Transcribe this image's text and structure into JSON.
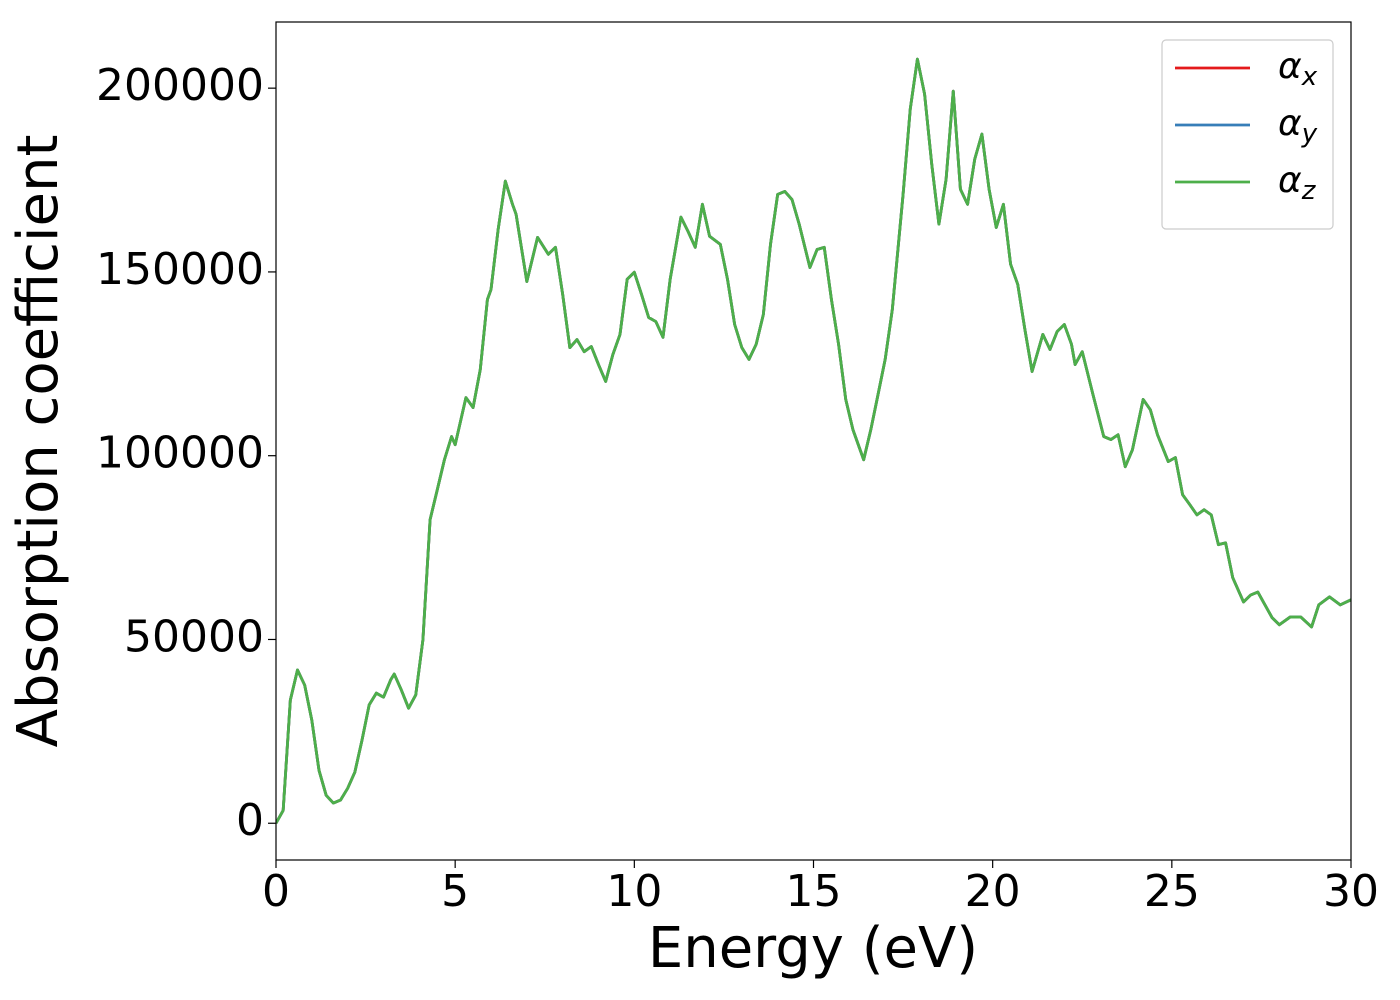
{
  "chart_data": {
    "type": "line",
    "xlabel": "Energy (eV)",
    "ylabel": "Absorption coefficient",
    "xlim": [
      0,
      30
    ],
    "xticks": [
      0,
      5,
      10,
      15,
      20,
      25,
      30
    ],
    "ylim": [
      -10000,
      218000
    ],
    "yticks": [
      0,
      50000,
      100000,
      150000,
      200000
    ],
    "legend": "upper right",
    "grid": false,
    "x": [
      0,
      0.2,
      0.4,
      0.6,
      0.8,
      1.0,
      1.2,
      1.4,
      1.6,
      1.8,
      2.0,
      2.2,
      2.4,
      2.6,
      2.8,
      3.0,
      3.2,
      3.3,
      3.5,
      3.7,
      3.9,
      4.1,
      4.3,
      4.5,
      4.7,
      4.9,
      5.0,
      5.3,
      5.5,
      5.7,
      5.9,
      6.0,
      6.2,
      6.4,
      6.6,
      6.7,
      7.0,
      7.3,
      7.6,
      7.8,
      8.0,
      8.2,
      8.4,
      8.6,
      8.8,
      9.0,
      9.2,
      9.4,
      9.6,
      9.8,
      10.0,
      10.2,
      10.4,
      10.6,
      10.8,
      11.0,
      11.3,
      11.5,
      11.7,
      11.9,
      12.1,
      12.4,
      12.6,
      12.8,
      13.0,
      13.2,
      13.4,
      13.6,
      13.8,
      14.0,
      14.2,
      14.4,
      14.6,
      14.9,
      15.1,
      15.3,
      15.5,
      15.7,
      15.9,
      16.1,
      16.4,
      16.6,
      16.8,
      17.0,
      17.2,
      17.5,
      17.7,
      17.9,
      18.1,
      18.3,
      18.5,
      18.7,
      18.9,
      19.1,
      19.3,
      19.5,
      19.7,
      19.9,
      20.1,
      20.3,
      20.5,
      20.7,
      20.9,
      21.1,
      21.4,
      21.6,
      21.8,
      22.0,
      22.2,
      22.3,
      22.5,
      22.8,
      23.1,
      23.3,
      23.5,
      23.7,
      23.9,
      24.2,
      24.4,
      24.6,
      24.9,
      25.1,
      25.3,
      25.5,
      25.7,
      25.9,
      26.1,
      26.3,
      26.5,
      26.7,
      27.0,
      27.2,
      27.4,
      27.6,
      27.8,
      28.0,
      28.3,
      28.6,
      28.9,
      29.1,
      29.4,
      29.7,
      30.0
    ],
    "series": [
      {
        "name": "α_x",
        "color": "#e41a1c",
        "values": [
          0,
          3500,
          33500,
          41700,
          37600,
          28000,
          14400,
          7600,
          5500,
          6300,
          9500,
          13900,
          22600,
          32200,
          35400,
          34300,
          39000,
          40600,
          36200,
          31300,
          34900,
          49900,
          82600,
          90700,
          98900,
          105200,
          103000,
          115800,
          113100,
          123400,
          142500,
          145200,
          161600,
          174700,
          168400,
          165700,
          147400,
          159400,
          154800,
          156700,
          143900,
          129400,
          131600,
          128300,
          129700,
          124800,
          120200,
          127500,
          133000,
          148000,
          149900,
          143900,
          137600,
          136500,
          132200,
          148000,
          164900,
          161000,
          156700,
          168400,
          159700,
          157500,
          148000,
          135700,
          129400,
          126200,
          130300,
          138400,
          157500,
          171100,
          171900,
          169700,
          163000,
          151200,
          156100,
          156700,
          142500,
          130300,
          115300,
          107100,
          98900,
          107100,
          116600,
          126200,
          139800,
          171100,
          194300,
          207900,
          198400,
          179300,
          163000,
          175200,
          199200,
          172500,
          168400,
          180700,
          187500,
          172500,
          162100,
          168400,
          152100,
          146600,
          134300,
          122900,
          133000,
          128900,
          133800,
          135700,
          130300,
          124800,
          128300,
          116600,
          105200,
          104400,
          105700,
          97000,
          101600,
          115300,
          112500,
          105700,
          98400,
          99500,
          89400,
          86700,
          83900,
          85300,
          83900,
          75800,
          76300,
          66800,
          60200,
          62100,
          62900,
          59400,
          55900,
          54000,
          56100,
          56100,
          53400,
          59400,
          61600,
          59400,
          60800
        ]
      },
      {
        "name": "α_y",
        "color": "#377eb8",
        "values": [
          0,
          3500,
          33500,
          41700,
          37600,
          28000,
          14400,
          7600,
          5500,
          6300,
          9500,
          13900,
          22600,
          32200,
          35400,
          34300,
          39000,
          40600,
          36200,
          31300,
          34900,
          49900,
          82600,
          90700,
          98900,
          105200,
          103000,
          115800,
          113100,
          123400,
          142500,
          145200,
          161600,
          174700,
          168400,
          165700,
          147400,
          159400,
          154800,
          156700,
          143900,
          129400,
          131600,
          128300,
          129700,
          124800,
          120200,
          127500,
          133000,
          148000,
          149900,
          143900,
          137600,
          136500,
          132200,
          148000,
          164900,
          161000,
          156700,
          168400,
          159700,
          157500,
          148000,
          135700,
          129400,
          126200,
          130300,
          138400,
          157500,
          171100,
          171900,
          169700,
          163000,
          151200,
          156100,
          156700,
          142500,
          130300,
          115300,
          107100,
          98900,
          107100,
          116600,
          126200,
          139800,
          171100,
          194300,
          207900,
          198400,
          179300,
          163000,
          175200,
          199200,
          172500,
          168400,
          180700,
          187500,
          172500,
          162100,
          168400,
          152100,
          146600,
          134300,
          122900,
          133000,
          128900,
          133800,
          135700,
          130300,
          124800,
          128300,
          116600,
          105200,
          104400,
          105700,
          97000,
          101600,
          115300,
          112500,
          105700,
          98400,
          99500,
          89400,
          86700,
          83900,
          85300,
          83900,
          75800,
          76300,
          66800,
          60200,
          62100,
          62900,
          59400,
          55900,
          54000,
          56100,
          56100,
          53400,
          59400,
          61600,
          59400,
          60800
        ]
      },
      {
        "name": "α_z",
        "color": "#4daf4a",
        "values": [
          0,
          3500,
          33500,
          41700,
          37600,
          28000,
          14400,
          7600,
          5500,
          6300,
          9500,
          13900,
          22600,
          32200,
          35400,
          34300,
          39000,
          40600,
          36200,
          31300,
          34900,
          49900,
          82600,
          90700,
          98900,
          105200,
          103000,
          115800,
          113100,
          123400,
          142500,
          145200,
          161600,
          174700,
          168400,
          165700,
          147400,
          159400,
          154800,
          156700,
          143900,
          129400,
          131600,
          128300,
          129700,
          124800,
          120200,
          127500,
          133000,
          148000,
          149900,
          143900,
          137600,
          136500,
          132200,
          148000,
          164900,
          161000,
          156700,
          168400,
          159700,
          157500,
          148000,
          135700,
          129400,
          126200,
          130300,
          138400,
          157500,
          171100,
          171900,
          169700,
          163000,
          151200,
          156100,
          156700,
          142500,
          130300,
          115300,
          107100,
          98900,
          107100,
          116600,
          126200,
          139800,
          171100,
          194300,
          207900,
          198400,
          179300,
          163000,
          175200,
          199200,
          172500,
          168400,
          180700,
          187500,
          172500,
          162100,
          168400,
          152100,
          146600,
          134300,
          122900,
          133000,
          128900,
          133800,
          135700,
          130300,
          124800,
          128300,
          116600,
          105200,
          104400,
          105700,
          97000,
          101600,
          115300,
          112500,
          105700,
          98400,
          99500,
          89400,
          86700,
          83900,
          85300,
          83900,
          75800,
          76300,
          66800,
          60200,
          62100,
          62900,
          59400,
          55900,
          54000,
          56100,
          56100,
          53400,
          59400,
          61600,
          59400,
          60800
        ]
      }
    ]
  }
}
